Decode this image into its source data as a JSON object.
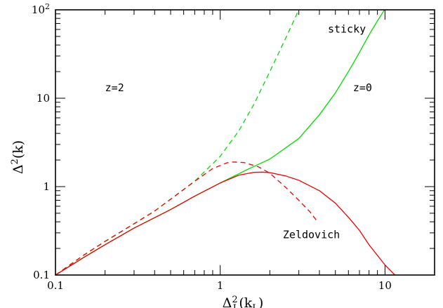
{
  "chart_data": {
    "type": "line",
    "xscale": "log",
    "yscale": "log",
    "xlim": [
      0.1,
      20
    ],
    "ylim": [
      0.1,
      100
    ],
    "xlabel": {
      "base": "Δ",
      "sup": "2",
      "sub": "L",
      "arg_open": "(k",
      "arg_sub": "L",
      "arg_close": ")"
    },
    "ylabel": {
      "base": "Δ",
      "sup": "2",
      "arg": "(k)"
    },
    "x_ticks": [
      {
        "value": 0.1,
        "label": "0.1"
      },
      {
        "value": 1,
        "label": "1"
      },
      {
        "value": 10,
        "label": "10"
      }
    ],
    "y_ticks": [
      {
        "value": 0.1,
        "label": "0.1"
      },
      {
        "value": 1,
        "label": "1"
      },
      {
        "value": 10,
        "label": "10"
      },
      {
        "value": 100,
        "label_base": "10",
        "label_sup": "2"
      }
    ],
    "series": [
      {
        "key": "sticky_z0",
        "color": "#00dd00",
        "style": "solid",
        "x": [
          0.1,
          0.15,
          0.2,
          0.3,
          0.5,
          0.7,
          1.0,
          1.5,
          2.0,
          3.0,
          4.0,
          5.0,
          6.0,
          7.0,
          8.0,
          9.0,
          10.0
        ],
        "y": [
          0.1,
          0.16,
          0.22,
          0.34,
          0.55,
          0.78,
          1.1,
          1.6,
          2.05,
          3.5,
          6.5,
          11.5,
          20,
          33,
          52,
          75,
          102
        ]
      },
      {
        "key": "sticky_z2",
        "color": "#00dd00",
        "style": "dashed",
        "x": [
          0.1,
          0.15,
          0.2,
          0.3,
          0.4,
          0.5,
          0.7,
          1.0,
          1.3,
          1.6,
          2.0,
          2.5,
          3.0
        ],
        "y": [
          0.1,
          0.17,
          0.24,
          0.38,
          0.53,
          0.72,
          1.15,
          2.2,
          4.3,
          8.5,
          20,
          48,
          100
        ]
      },
      {
        "key": "zeldovich_z0",
        "color": "#ee0000",
        "style": "solid",
        "x": [
          0.1,
          0.15,
          0.2,
          0.3,
          0.5,
          0.7,
          1.0,
          1.3,
          1.6,
          1.8,
          2.0,
          2.5,
          3.0,
          4.0,
          5.0,
          6.0,
          7.0,
          8.0,
          10.0,
          11.5
        ],
        "y": [
          0.1,
          0.16,
          0.22,
          0.34,
          0.55,
          0.78,
          1.1,
          1.35,
          1.45,
          1.46,
          1.44,
          1.32,
          1.18,
          0.9,
          0.65,
          0.45,
          0.32,
          0.22,
          0.13,
          0.1
        ]
      },
      {
        "key": "zeldovich_z2",
        "color": "#ee0000",
        "style": "dashed",
        "x": [
          0.1,
          0.15,
          0.2,
          0.3,
          0.4,
          0.5,
          0.7,
          0.9,
          1.1,
          1.2,
          1.4,
          1.7,
          2.0,
          2.5,
          3.0,
          3.5,
          3.9
        ],
        "y": [
          0.1,
          0.17,
          0.24,
          0.38,
          0.53,
          0.72,
          1.15,
          1.6,
          1.86,
          1.9,
          1.87,
          1.68,
          1.42,
          0.98,
          0.7,
          0.52,
          0.4
        ]
      }
    ],
    "annotations": [
      {
        "key": "sticky",
        "text": "sticky",
        "x": 4.5,
        "y": 55
      },
      {
        "key": "z2",
        "text": "z=2",
        "x": 0.2,
        "y": 12
      },
      {
        "key": "z0",
        "text": "z=0",
        "x": 6.4,
        "y": 12
      },
      {
        "key": "zeldovich",
        "text": "Zeldovich",
        "x": 2.4,
        "y": 0.26
      }
    ]
  }
}
